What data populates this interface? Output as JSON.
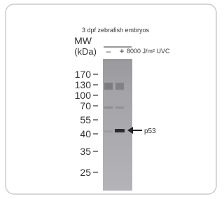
{
  "header": {
    "sample": "3 dpf zebrafish embryos",
    "mw": "MW",
    "unit": "(kDa)",
    "treatment": "8000 J/m² UVC"
  },
  "lanes": [
    "–",
    "+"
  ],
  "markers": [
    170,
    130,
    100,
    70,
    55,
    40,
    35,
    25
  ],
  "annotation": "p53"
}
